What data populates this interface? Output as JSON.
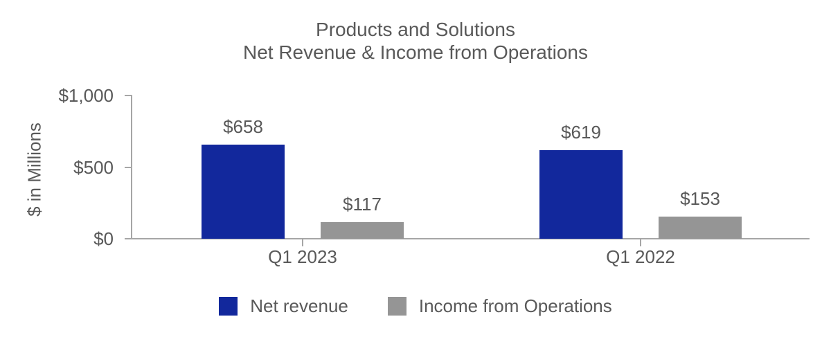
{
  "chart_data": {
    "type": "bar",
    "title_line1": "Products and Solutions",
    "title_line2": "Net Revenue & Income from Operations",
    "ylabel": "$ in Millions",
    "categories": [
      "Q1 2023",
      "Q1 2022"
    ],
    "series": [
      {
        "name": "Net revenue",
        "color": "#12289C",
        "values": [
          658,
          619
        ],
        "data_labels": [
          "$658",
          "$619"
        ]
      },
      {
        "name": "Income from Operations",
        "color": "#959595",
        "values": [
          117,
          153
        ],
        "data_labels": [
          "$117",
          "$153"
        ]
      }
    ],
    "yticks": [
      {
        "value": 0,
        "label": "$0"
      },
      {
        "value": 500,
        "label": "$500"
      },
      {
        "value": 1000,
        "label": "$1,000"
      }
    ],
    "ylim": [
      0,
      1000
    ],
    "grid": false,
    "legend_position": "bottom",
    "axis_color": "#A6A6A6",
    "text_color": "#595959"
  }
}
